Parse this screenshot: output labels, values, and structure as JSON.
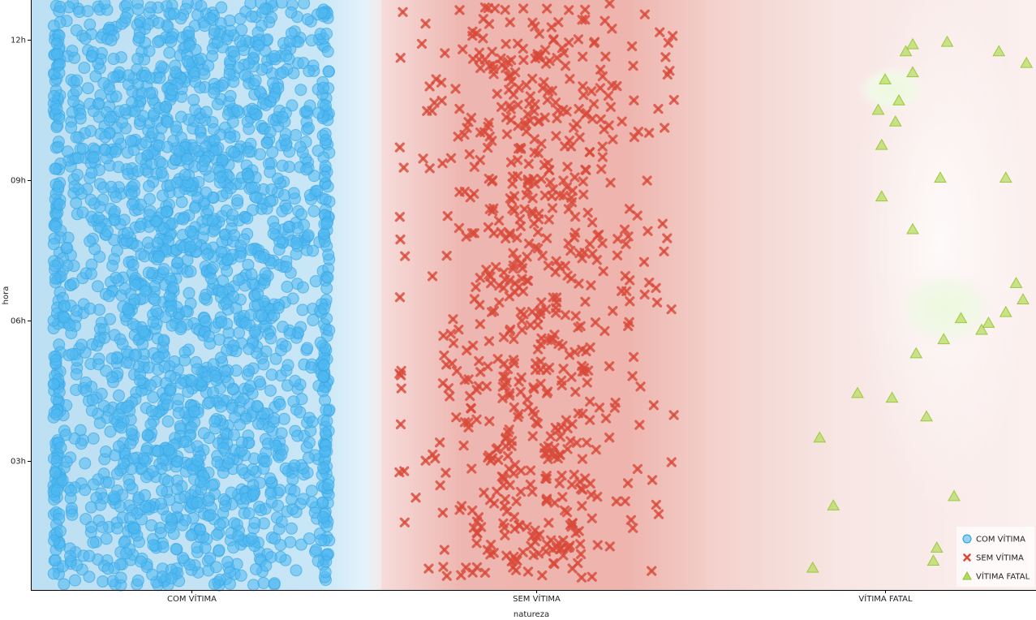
{
  "chart_data": {
    "type": "scatter",
    "xlabel": "natureza",
    "ylabel": "hora",
    "categories": [
      "COM VÍTIMA",
      "SEM VÍTIMA",
      "VÍTIMA FATAL"
    ],
    "yticks": [
      {
        "value": 3,
        "label": "03h"
      },
      {
        "value": 6,
        "label": "06h"
      },
      {
        "value": 9,
        "label": "09h"
      },
      {
        "value": 12,
        "label": "12h"
      }
    ],
    "ylim": [
      0.25,
      12.85
    ],
    "grid": false,
    "legend": {
      "position": "bottom-right",
      "entries": [
        "COM VÍTIMA",
        "SEM VÍTIMA",
        "VÍTIMA FATAL"
      ]
    },
    "series": [
      {
        "name": "COM VÍTIMA",
        "marker": "circle",
        "color": "#4fb8f0",
        "count": 2200,
        "x_spread": [
          -0.4,
          0.4
        ],
        "y_range": [
          0.35,
          12.8
        ]
      },
      {
        "name": "SEM VÍTIMA",
        "marker": "x",
        "color": "#d84a3a",
        "count": 700,
        "x_spread": [
          -0.4,
          0.4
        ],
        "y_range": [
          0.45,
          12.8
        ]
      },
      {
        "name": "VÍTIMA FATAL",
        "marker": "triangle",
        "color": "#b3dc5a",
        "points": [
          [
            -0.21,
            0.72
          ],
          [
            -0.15,
            2.05
          ],
          [
            -0.19,
            3.5
          ],
          [
            -0.08,
            4.45
          ],
          [
            0.14,
            0.87
          ],
          [
            0.15,
            1.15
          ],
          [
            0.2,
            2.25
          ],
          [
            0.12,
            3.95
          ],
          [
            0.02,
            4.35
          ],
          [
            0.09,
            5.3
          ],
          [
            0.17,
            5.6
          ],
          [
            0.22,
            6.05
          ],
          [
            0.28,
            5.8
          ],
          [
            0.3,
            5.95
          ],
          [
            0.35,
            6.18
          ],
          [
            0.08,
            7.95
          ],
          [
            -0.01,
            8.65
          ],
          [
            0.16,
            9.05
          ],
          [
            0.35,
            9.05
          ],
          [
            0.41,
            11.5
          ],
          [
            -0.01,
            9.75
          ],
          [
            0.03,
            10.25
          ],
          [
            -0.02,
            10.5
          ],
          [
            0.04,
            10.7
          ],
          [
            0.0,
            11.15
          ],
          [
            0.08,
            11.3
          ],
          [
            0.06,
            11.75
          ],
          [
            0.33,
            11.75
          ],
          [
            0.08,
            11.9
          ],
          [
            0.18,
            11.95
          ],
          [
            0.4,
            6.45
          ],
          [
            0.38,
            6.8
          ]
        ]
      }
    ]
  }
}
